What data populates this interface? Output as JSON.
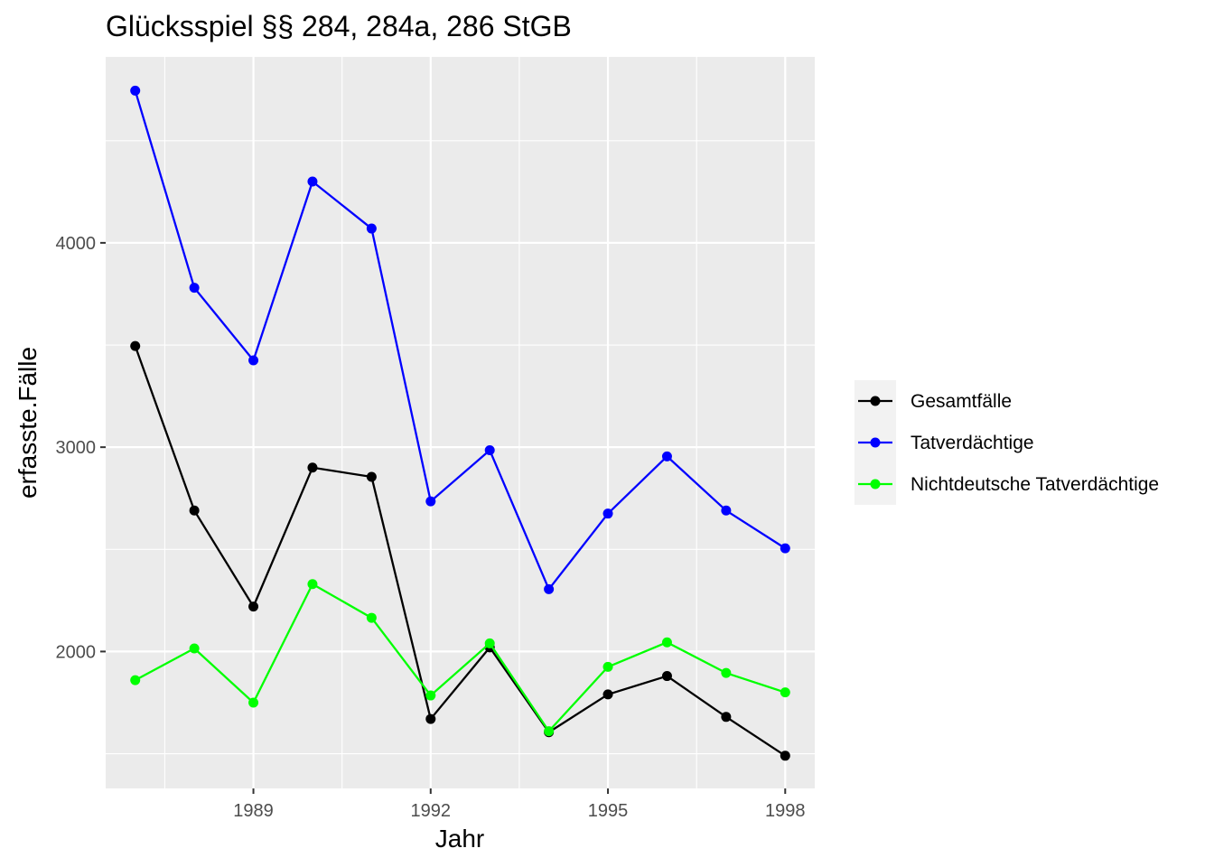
{
  "chart_data": {
    "type": "line",
    "title": "Glücksspiel §§ 284, 284a, 286 StGB",
    "xlabel": "Jahr",
    "ylabel": "erfasste.Fälle",
    "x": [
      1987,
      1988,
      1989,
      1990,
      1991,
      1992,
      1993,
      1994,
      1995,
      1996,
      1997,
      1998
    ],
    "xlim": [
      1986.5,
      1998.5
    ],
    "ylim": [
      1330,
      4910
    ],
    "x_ticks": [
      1989,
      1992,
      1995,
      1998
    ],
    "x_tick_labels": [
      "1989",
      "1992",
      "1995",
      "1998"
    ],
    "y_ticks": [
      2000,
      3000,
      4000
    ],
    "y_tick_labels": [
      "2000",
      "3000",
      "4000"
    ],
    "grid": true,
    "legend_position": "right",
    "series": [
      {
        "name": "Gesamtfälle",
        "color": "#000000",
        "values": [
          3495,
          2690,
          2220,
          2900,
          2855,
          1670,
          2020,
          1605,
          1790,
          1880,
          1680,
          1490
        ]
      },
      {
        "name": "Tatverdächtige",
        "color": "#0000ff",
        "values": [
          4745,
          3780,
          3425,
          4300,
          4070,
          2735,
          2985,
          2305,
          2675,
          2955,
          2690,
          2505
        ]
      },
      {
        "name": "Nichtdeutsche Tatverdächtige",
        "color": "#00ff00",
        "values": [
          1860,
          2015,
          1750,
          2330,
          2165,
          1785,
          2040,
          1610,
          1925,
          2045,
          1895,
          1800
        ]
      }
    ]
  }
}
